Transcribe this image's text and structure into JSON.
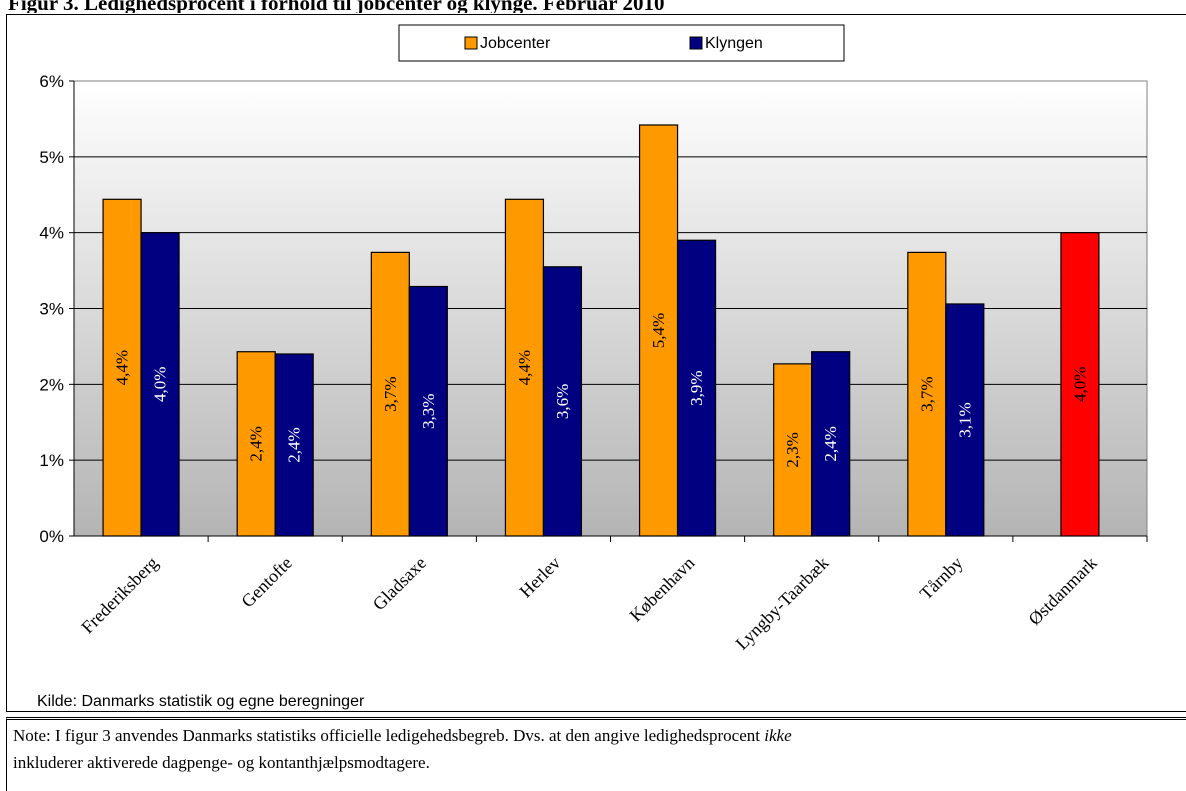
{
  "title": "Figur 3. Ledighedsprocent i forhold til jobcenter og klynge. Februar 2010",
  "source": "Kilde: Danmarks statistik og egne beregninger",
  "note": {
    "before": "Note: I figur 3 anvendes Danmarks statistiks officielle ledigehedsbegreb. Dvs. at den angive ledighedsprocent ",
    "italic": "ikke",
    "line2": "inkluderer  aktiverede dagpenge- og kontanthjælpsmodtagere."
  },
  "colors": {
    "jobcenter": "#FF9900",
    "klyngen": "#000080",
    "ostdanmark": "#FF0000"
  },
  "chart_data": {
    "type": "bar",
    "categories": [
      "Frederiksberg",
      "Gentofte",
      "Gladsaxe",
      "Herlev",
      "København",
      "Lyngby-Taarbæk",
      "Tårnby",
      "Østdanmark"
    ],
    "series": [
      {
        "name": "Jobcenter",
        "values": [
          4.44,
          2.43,
          3.74,
          4.44,
          5.42,
          2.27,
          3.74,
          null
        ],
        "labels": [
          "4,4%",
          "2,4%",
          "3,7%",
          "4,4%",
          "5,4%",
          "2,3%",
          "3,7%",
          null
        ]
      },
      {
        "name": "Klyngen",
        "values": [
          4.0,
          2.4,
          3.29,
          3.55,
          3.9,
          2.43,
          3.06,
          null
        ],
        "labels": [
          "4,0%",
          "2,4%",
          "3,3%",
          "3,6%",
          "3,9%",
          "2,4%",
          "3,1%",
          null
        ]
      }
    ],
    "total": {
      "category": "Østdanmark",
      "value": 4.0,
      "label": "4,0%"
    },
    "ylim": [
      0,
      6
    ],
    "yticks": [
      "0%",
      "1%",
      "2%",
      "3%",
      "4%",
      "5%",
      "6%"
    ],
    "legend": [
      "Jobcenter",
      "Klyngen"
    ],
    "legend_position": "top-center",
    "grid": true
  }
}
